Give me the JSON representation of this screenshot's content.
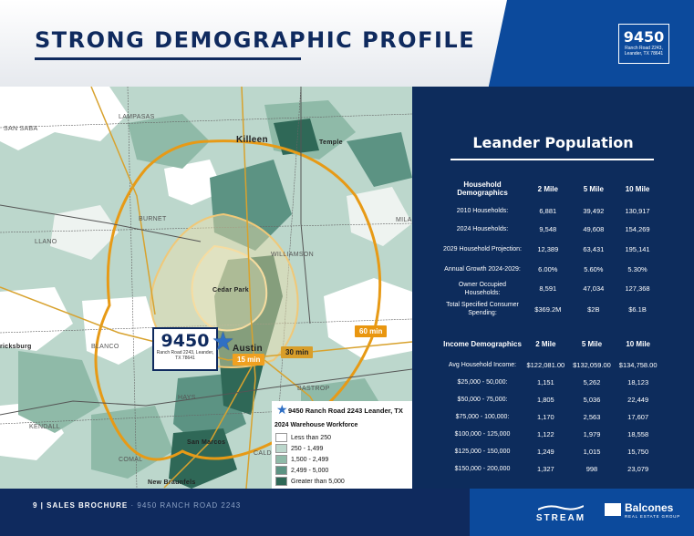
{
  "header": {
    "title": "STRONG DEMOGRAPHIC PROFILE",
    "logo_number": "9450",
    "logo_sub": "Ranch Road 2243, Leander, TX 78641"
  },
  "map": {
    "pin_number": "9450",
    "pin_sub": "Ranch Road 2243, Leander, TX 78641",
    "drive_15": "15 min",
    "drive_30": "30 min",
    "drive_60": "60 min",
    "cities": {
      "lampasas": "LAMPASAS",
      "san_saba": "SAN SABA",
      "killeen": "Killeen",
      "temple": "Temple",
      "burnet": "BURNET",
      "llano": "LLANO",
      "milam": "MILA",
      "williamson": "WILLIAMSON",
      "cedar_park": "Cedar Park",
      "austin": "Austin",
      "blanco": "BLANCO",
      "fredericksburg": "ricksburg",
      "bastrop": "BASTROP",
      "hays": "HAYS",
      "kendall": "KENDALL",
      "san_marcos": "San Marcos",
      "comal": "COMAL",
      "new_braunfels": "New Braunfels",
      "caldwell": "CALD"
    },
    "legend": {
      "site": "9450 Ranch Road 2243 Leander, TX",
      "subtitle": "2024 Warehouse Workforce",
      "items": [
        {
          "label": "Less than 250",
          "color": "#ffffff"
        },
        {
          "label": "250 - 1,499",
          "color": "#bcd7cc"
        },
        {
          "label": "1,500 - 2,499",
          "color": "#8fbaa8"
        },
        {
          "label": "2,499 - 5,000",
          "color": "#5c9383"
        },
        {
          "label": "Greater than 5,000",
          "color": "#2f6857"
        }
      ]
    }
  },
  "panel": {
    "title": "Leander Population",
    "household": {
      "headers": [
        "Household Demographics",
        "2 Mile",
        "5 Mile",
        "10 Mile"
      ],
      "rows": [
        {
          "label": "2010 Households:",
          "v2": "6,881",
          "v5": "39,492",
          "v10": "130,917"
        },
        {
          "label": "2024 Households:",
          "v2": "9,548",
          "v5": "49,608",
          "v10": "154,269"
        },
        {
          "label": "2029 Household Projection:",
          "v2": "12,389",
          "v5": "63,431",
          "v10": "195,141"
        },
        {
          "label": "Annual Growth 2024-2029:",
          "v2": "6.00%",
          "v5": "5.60%",
          "v10": "5.30%"
        },
        {
          "label": "Owner Occupied Households:",
          "v2": "8,591",
          "v5": "47,034",
          "v10": "127,368"
        },
        {
          "label": "Total Specified Consumer Spending:",
          "v2": "$369.2M",
          "v5": "$2B",
          "v10": "$6.1B"
        }
      ]
    },
    "income": {
      "headers": [
        "Income Demographics",
        "2 Mile",
        "5 Mile",
        "10 Mile"
      ],
      "rows": [
        {
          "label": "Avg Household Income:",
          "v2": "$122,081.00",
          "v5": "$132,059.00",
          "v10": "$134,758.00"
        },
        {
          "label": "$25,000 - 50,000:",
          "v2": "1,151",
          "v5": "5,262",
          "v10": "18,123"
        },
        {
          "label": "$50,000 - 75,000:",
          "v2": "1,805",
          "v5": "5,036",
          "v10": "22,449"
        },
        {
          "label": "$75,000 - 100,000:",
          "v2": "1,170",
          "v5": "2,563",
          "v10": "17,607"
        },
        {
          "label": "$100,000 - 125,000",
          "v2": "1,122",
          "v5": "1,979",
          "v10": "18,558"
        },
        {
          "label": "$125,000 - 150,000",
          "v2": "1,249",
          "v5": "1,015",
          "v10": "15,750"
        },
        {
          "label": "$150,000 - 200,000",
          "v2": "1,327",
          "v5": "998",
          "v10": "23,079"
        }
      ]
    }
  },
  "footer": {
    "page": "9 | SALES BROCHURE",
    "property": "9450 RANCH ROAD 2243",
    "brand1": "STREAM",
    "brand2": "Balcones",
    "brand2_sub": "REAL ESTATE GROUP"
  }
}
